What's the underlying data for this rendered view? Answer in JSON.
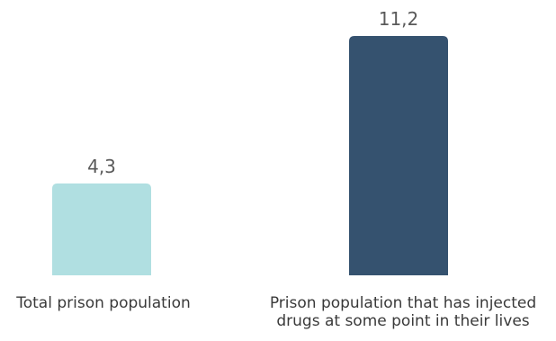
{
  "chart_data": {
    "type": "bar",
    "categories": [
      [
        "Total prison population"
      ],
      [
        "Prison population that has injected",
        "drugs at some point in their lives"
      ]
    ],
    "values": [
      4.3,
      11.2
    ],
    "value_labels": [
      "4,3",
      "11,2"
    ],
    "colors": [
      "#b0dfe1",
      "#35526f"
    ],
    "ylim": [
      0,
      11.2
    ],
    "grid": false,
    "legend": "none"
  }
}
